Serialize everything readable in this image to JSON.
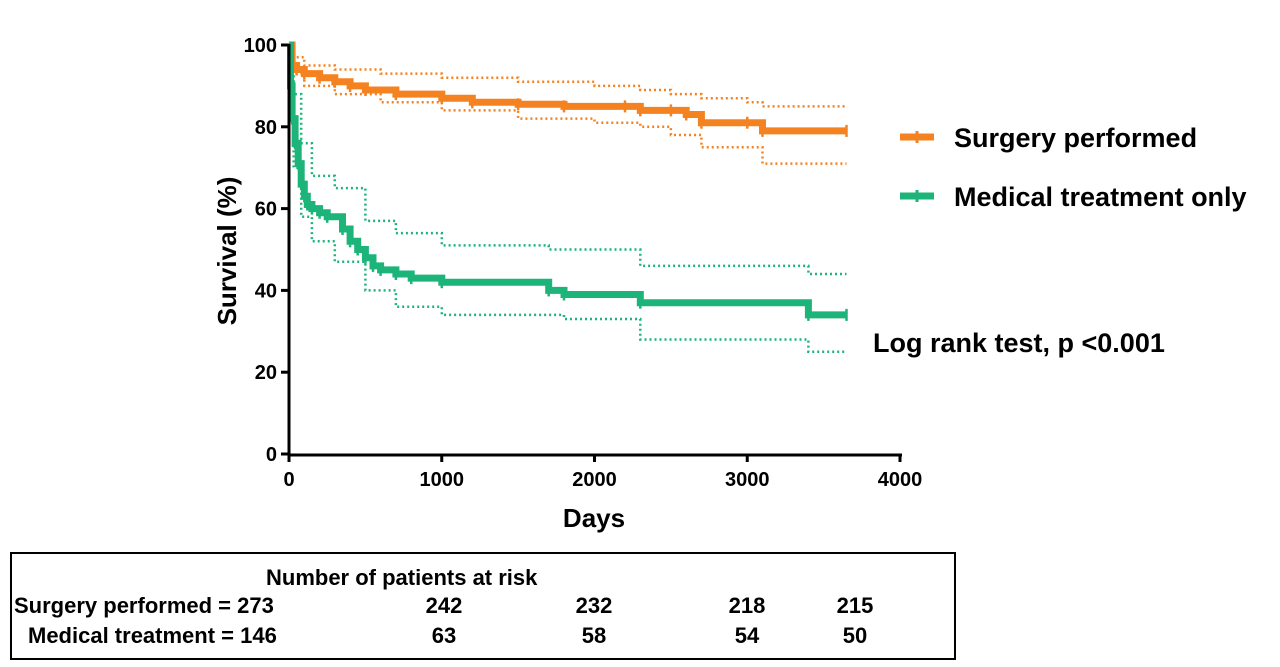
{
  "chart_data": {
    "type": "line",
    "title": "",
    "xlabel": "Days",
    "ylabel": "Survival (%)",
    "xlim": [
      0,
      4000
    ],
    "ylim": [
      0,
      100
    ],
    "xticks": [
      0,
      1000,
      2000,
      3000,
      4000
    ],
    "yticks": [
      0,
      20,
      40,
      60,
      80,
      100
    ],
    "grid": false,
    "legend_position": "right",
    "series": [
      {
        "name": "Surgery performed",
        "color": "#f58220",
        "style": "step",
        "x": [
          0,
          20,
          50,
          100,
          200,
          300,
          400,
          500,
          700,
          1000,
          1200,
          1500,
          1800,
          2200,
          2300,
          2500,
          2600,
          2700,
          3000,
          3100,
          3650
        ],
        "y": [
          100,
          95,
          94,
          93,
          92,
          91,
          90,
          89,
          88,
          87,
          86,
          85.5,
          85,
          85,
          84,
          84,
          83,
          81,
          81,
          79,
          79
        ]
      },
      {
        "name": "Surgery performed upper 95% CI",
        "color": "#f58220",
        "style": "dotted",
        "x": [
          0,
          20,
          100,
          300,
          600,
          1000,
          1500,
          2000,
          2300,
          2500,
          2700,
          3000,
          3100,
          3650
        ],
        "y": [
          100,
          97,
          95,
          94,
          93,
          92,
          91,
          90,
          89,
          88,
          87,
          86,
          85,
          85
        ]
      },
      {
        "name": "Surgery performed lower 95% CI",
        "color": "#f58220",
        "style": "dotted",
        "x": [
          0,
          20,
          100,
          300,
          600,
          1000,
          1500,
          2000,
          2300,
          2500,
          2700,
          3000,
          3100,
          3650
        ],
        "y": [
          100,
          93,
          90,
          88,
          86,
          84,
          82,
          81,
          80,
          78,
          75,
          75,
          71,
          71
        ]
      },
      {
        "name": "Medical treatment only",
        "color": "#1db47a",
        "style": "step",
        "x": [
          0,
          10,
          20,
          40,
          60,
          80,
          100,
          120,
          150,
          200,
          250,
          350,
          400,
          450,
          500,
          550,
          600,
          700,
          800,
          1000,
          1700,
          1800,
          2300,
          3400,
          3650
        ],
        "y": [
          100,
          90,
          82,
          76,
          71,
          66,
          63,
          61,
          60,
          59,
          58,
          55,
          52,
          50,
          48,
          46,
          45,
          44,
          43,
          42,
          40,
          39,
          37,
          34,
          34
        ]
      },
      {
        "name": "Medical treatment only upper 95% CI",
        "color": "#1db47a",
        "style": "dotted",
        "x": [
          0,
          30,
          80,
          150,
          300,
          500,
          700,
          1000,
          1200,
          1700,
          2300,
          3000,
          3400,
          3650
        ],
        "y": [
          100,
          88,
          76,
          68,
          65,
          57,
          54,
          51,
          51,
          50,
          46,
          46,
          44,
          44
        ]
      },
      {
        "name": "Medical treatment only lower 95% CI",
        "color": "#1db47a",
        "style": "dotted",
        "x": [
          0,
          30,
          80,
          150,
          300,
          500,
          700,
          1000,
          1500,
          1800,
          2300,
          3000,
          3400,
          3650
        ],
        "y": [
          100,
          70,
          58,
          52,
          47,
          40,
          36,
          34,
          34,
          33,
          28,
          28,
          25,
          25
        ]
      }
    ]
  },
  "legend": {
    "items": [
      {
        "label": "Surgery performed",
        "color": "#f58220"
      },
      {
        "label": "Medical treatment only",
        "color": "#1db47a"
      }
    ]
  },
  "annotation": "Log rank test, p <0.001",
  "risk_table": {
    "title": "Number of patients at risk",
    "rows": [
      {
        "label": "Surgery performed = 273",
        "counts": [
          "242",
          "232",
          "218",
          "215"
        ]
      },
      {
        "label": "Medical treatment = 146",
        "counts": [
          "63",
          "58",
          "54",
          "50"
        ]
      }
    ]
  }
}
